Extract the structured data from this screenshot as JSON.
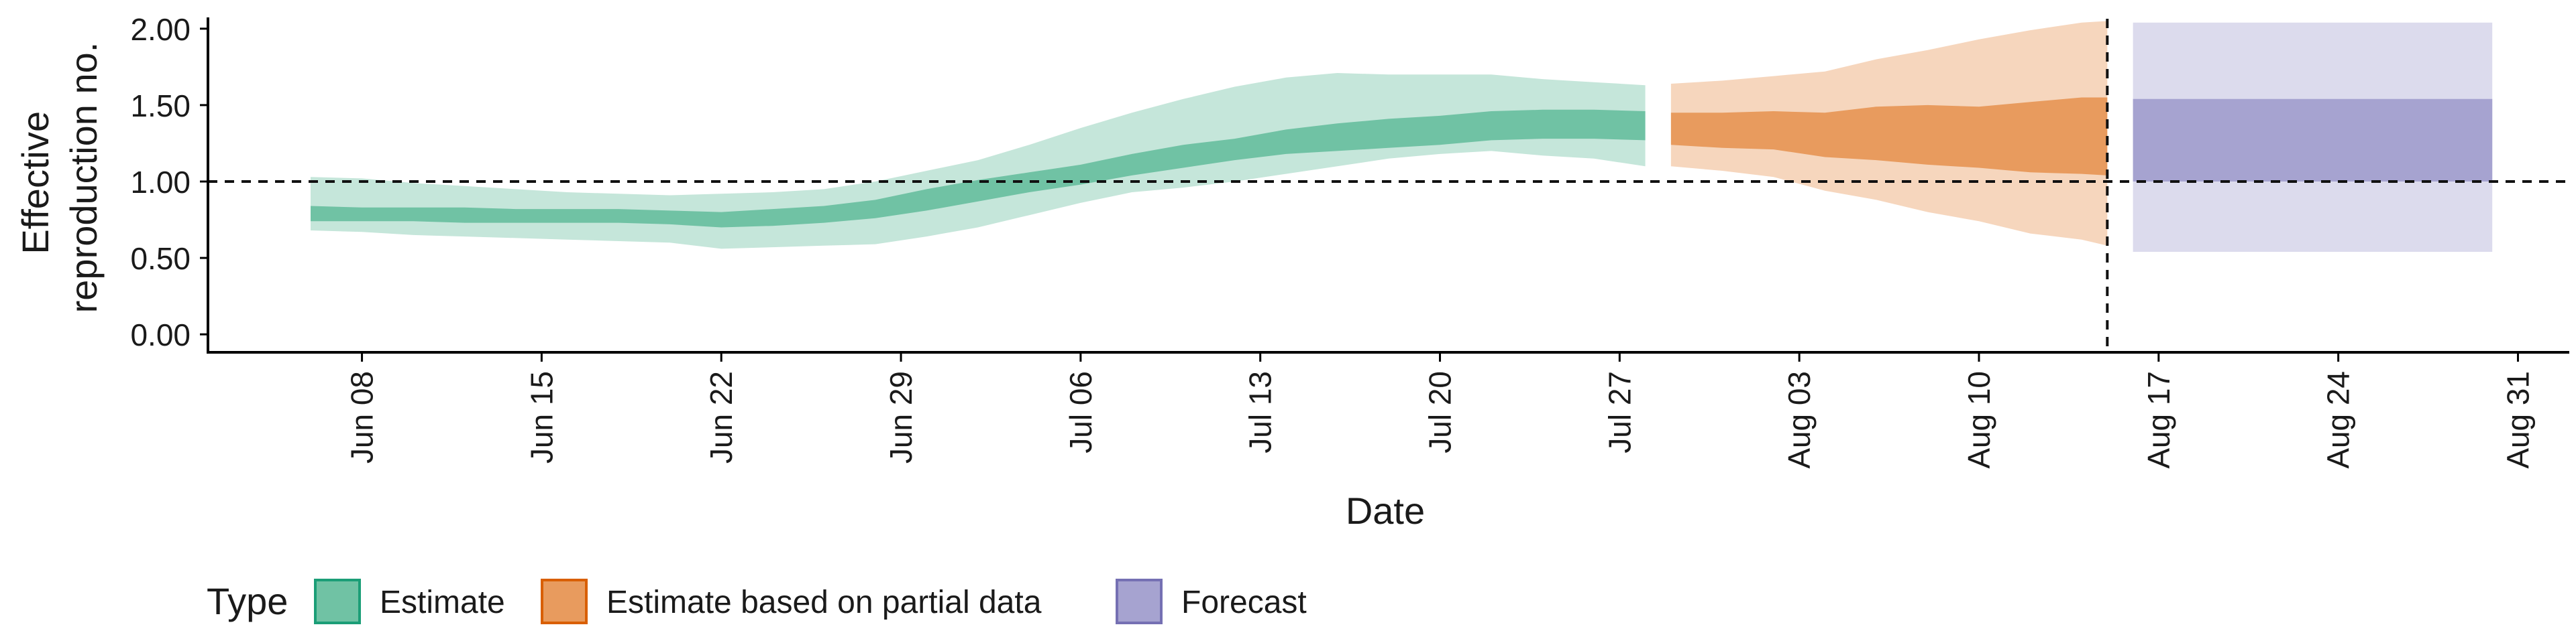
{
  "chart_data": {
    "type": "area",
    "xlabel": "Date",
    "ylabel_lines": [
      "Effective",
      "reproduction no."
    ],
    "x_range": [
      "2020-06-02",
      "2020-09-02"
    ],
    "ylim": [
      -0.1,
      2.1
    ],
    "x_ticks": [
      {
        "date": "2020-06-08",
        "label": "Jun 08"
      },
      {
        "date": "2020-06-15",
        "label": "Jun 15"
      },
      {
        "date": "2020-06-22",
        "label": "Jun 22"
      },
      {
        "date": "2020-06-29",
        "label": "Jun 29"
      },
      {
        "date": "2020-07-06",
        "label": "Jul 06"
      },
      {
        "date": "2020-07-13",
        "label": "Jul 13"
      },
      {
        "date": "2020-07-20",
        "label": "Jul 20"
      },
      {
        "date": "2020-07-27",
        "label": "Jul 27"
      },
      {
        "date": "2020-08-03",
        "label": "Aug 03"
      },
      {
        "date": "2020-08-10",
        "label": "Aug 10"
      },
      {
        "date": "2020-08-17",
        "label": "Aug 17"
      },
      {
        "date": "2020-08-24",
        "label": "Aug 24"
      },
      {
        "date": "2020-08-31",
        "label": "Aug 31"
      }
    ],
    "y_ticks": [
      {
        "value": 0.0,
        "label": "0.00"
      },
      {
        "value": 0.5,
        "label": "0.50"
      },
      {
        "value": 1.0,
        "label": "1.00"
      },
      {
        "value": 1.5,
        "label": "1.50"
      },
      {
        "value": 2.0,
        "label": "2.00"
      }
    ],
    "reference_lines": {
      "horizontal_y": 1.0,
      "vertical_date": "2020-08-15"
    },
    "grid": false,
    "series": [
      {
        "name": "Estimate",
        "color": "#1b9e77",
        "inner_fill": "#70c2a4",
        "outer_fill": "#c5e6da",
        "dates": [
          "2020-06-06",
          "2020-06-08",
          "2020-06-10",
          "2020-06-12",
          "2020-06-14",
          "2020-06-16",
          "2020-06-18",
          "2020-06-20",
          "2020-06-22",
          "2020-06-24",
          "2020-06-26",
          "2020-06-28",
          "2020-06-30",
          "2020-07-02",
          "2020-07-04",
          "2020-07-06",
          "2020-07-08",
          "2020-07-10",
          "2020-07-12",
          "2020-07-14",
          "2020-07-16",
          "2020-07-18",
          "2020-07-20",
          "2020-07-22",
          "2020-07-24",
          "2020-07-26",
          "2020-07-28"
        ],
        "lower_90": [
          0.68,
          0.67,
          0.65,
          0.64,
          0.63,
          0.62,
          0.61,
          0.6,
          0.56,
          0.57,
          0.58,
          0.59,
          0.64,
          0.7,
          0.78,
          0.86,
          0.93,
          0.96,
          1.0,
          1.05,
          1.1,
          1.15,
          1.18,
          1.2,
          1.17,
          1.15,
          1.1
        ],
        "lower_50": [
          0.74,
          0.74,
          0.74,
          0.73,
          0.73,
          0.73,
          0.73,
          0.72,
          0.7,
          0.71,
          0.73,
          0.76,
          0.81,
          0.87,
          0.93,
          0.98,
          1.04,
          1.09,
          1.14,
          1.18,
          1.2,
          1.22,
          1.24,
          1.27,
          1.28,
          1.28,
          1.27
        ],
        "upper_50": [
          0.84,
          0.83,
          0.83,
          0.83,
          0.82,
          0.82,
          0.82,
          0.81,
          0.8,
          0.82,
          0.84,
          0.88,
          0.95,
          1.01,
          1.06,
          1.11,
          1.18,
          1.24,
          1.28,
          1.34,
          1.38,
          1.41,
          1.43,
          1.46,
          1.47,
          1.47,
          1.46
        ],
        "upper_90": [
          1.03,
          1.02,
          0.99,
          0.97,
          0.95,
          0.93,
          0.92,
          0.91,
          0.92,
          0.93,
          0.95,
          1.0,
          1.07,
          1.14,
          1.24,
          1.35,
          1.45,
          1.54,
          1.62,
          1.68,
          1.71,
          1.7,
          1.7,
          1.7,
          1.67,
          1.65,
          1.63
        ]
      },
      {
        "name": "Estimate based on partial data",
        "color": "#d95f02",
        "inner_fill": "#e89b5e",
        "outer_fill": "#f6d6bd",
        "dates": [
          "2020-07-29",
          "2020-07-31",
          "2020-08-02",
          "2020-08-04",
          "2020-08-06",
          "2020-08-08",
          "2020-08-10",
          "2020-08-12",
          "2020-08-14",
          "2020-08-15"
        ],
        "lower_90": [
          1.1,
          1.07,
          1.03,
          0.94,
          0.88,
          0.8,
          0.74,
          0.66,
          0.62,
          0.58
        ],
        "lower_50": [
          1.24,
          1.22,
          1.21,
          1.16,
          1.14,
          1.11,
          1.09,
          1.06,
          1.05,
          1.04
        ],
        "upper_50": [
          1.45,
          1.45,
          1.46,
          1.45,
          1.49,
          1.5,
          1.49,
          1.52,
          1.55,
          1.55
        ],
        "upper_90": [
          1.64,
          1.66,
          1.69,
          1.72,
          1.8,
          1.86,
          1.93,
          1.99,
          2.04,
          2.05
        ]
      },
      {
        "name": "Forecast",
        "color": "#7570b3",
        "inner_fill": "#a6a3d0",
        "outer_fill": "#dcdbed",
        "dates": [
          "2020-08-16",
          "2020-08-30"
        ],
        "lower_90": [
          0.54,
          0.54
        ],
        "lower_50": [
          1.0,
          1.0
        ],
        "upper_50": [
          1.54,
          1.54
        ],
        "upper_90": [
          2.04,
          2.04
        ]
      }
    ],
    "legend": {
      "title": "Type",
      "placement": "bottom-left",
      "items": [
        "Estimate",
        "Estimate based on partial data",
        "Forecast"
      ]
    }
  }
}
